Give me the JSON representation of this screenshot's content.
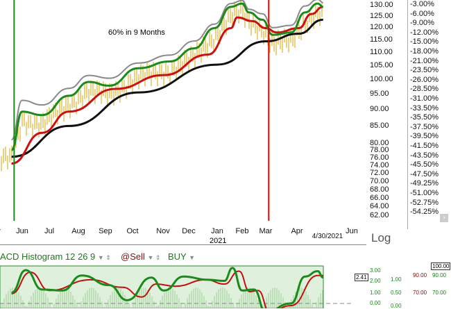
{
  "chart_data": {
    "type": "line",
    "annotation": "60% in 9 Months",
    "price_scale": "log",
    "price_ticks": [
      "130.00",
      "125.00",
      "120.00",
      "115.00",
      "110.00",
      "105.00",
      "100.00",
      "95.00",
      "90.00",
      "85.00",
      "80.00",
      "78.00",
      "76.00",
      "74.00",
      "72.00",
      "70.00",
      "68.00",
      "66.00",
      "64.00",
      "62.00"
    ],
    "percent_ticks": [
      "-3.00%",
      "-6.00%",
      "-9.00%",
      "-12.00%",
      "-15.00%",
      "-18.00%",
      "-21.00%",
      "-23.50%",
      "-26.00%",
      "-28.50%",
      "-31.00%",
      "-33.50%",
      "-35.50%",
      "-37.50%",
      "-39.50%",
      "-41.50%",
      "-43.50%",
      "-45.50%",
      "-47.50%",
      "-49.25%",
      "-51.00%",
      "-52.75%",
      "-54.25%"
    ],
    "month_labels": [
      "y",
      "Jun",
      "Jul",
      "Aug",
      "Sep",
      "Oct",
      "Nov",
      "Dec",
      "Jan",
      "Feb",
      "Mar",
      "Apr",
      "4/30/2021",
      "Jun"
    ],
    "year_label": "2021",
    "vertical_markers": [
      {
        "date": "2020-05-23",
        "color": "#1a8a1a"
      },
      {
        "date": "2021-03-04",
        "color": "#e00000"
      }
    ],
    "series": [
      {
        "color": "#111111",
        "points": [
          [
            "2020-05-20",
            76.3
          ],
          [
            "2020-07-22",
            85.0
          ],
          [
            "2020-10-07",
            95.6
          ],
          [
            "2021-01-01",
            105.4
          ],
          [
            "2021-03-01",
            114.4
          ],
          [
            "2021-04-03",
            117.5
          ],
          [
            "2021-04-30",
            123.4
          ]
        ]
      },
      {
        "color": "#cc1010",
        "points": [
          [
            "2020-05-20",
            74.5
          ],
          [
            "2020-06-23",
            83.0
          ],
          [
            "2020-07-22",
            89.4
          ],
          [
            "2020-09-12",
            96.8
          ],
          [
            "2020-11-02",
            101.6
          ],
          [
            "2020-12-22",
            109.2
          ],
          [
            "2021-01-18",
            119.8
          ],
          [
            "2021-01-26",
            124.4
          ],
          [
            "2021-02-13",
            122.8
          ],
          [
            "2021-03-01",
            119.8
          ],
          [
            "2021-03-12",
            118.0
          ],
          [
            "2021-04-03",
            119.8
          ],
          [
            "2021-04-17",
            125.9
          ],
          [
            "2021-04-30",
            129.1
          ]
        ]
      },
      {
        "color": "#8a8a8a",
        "points": [
          [
            "2020-05-20",
            81.0
          ],
          [
            "2020-06-01",
            93.0
          ],
          [
            "2020-06-23",
            91.5
          ],
          [
            "2020-07-22",
            97.0
          ],
          [
            "2020-08-13",
            101.5
          ],
          [
            "2020-09-05",
            100.5
          ],
          [
            "2020-10-07",
            106.0
          ],
          [
            "2020-11-09",
            109.0
          ],
          [
            "2020-12-07",
            114.5
          ],
          [
            "2020-12-29",
            121.5
          ],
          [
            "2021-01-18",
            130.6
          ],
          [
            "2021-02-01",
            132.0
          ],
          [
            "2021-02-09",
            128.0
          ],
          [
            "2021-02-25",
            126.0
          ],
          [
            "2021-03-08",
            120.0
          ],
          [
            "2021-03-26",
            121.0
          ],
          [
            "2021-04-10",
            129.5
          ],
          [
            "2021-04-24",
            132.5
          ],
          [
            "2021-04-30",
            131.0
          ]
        ]
      },
      {
        "color": "#1a8a1a",
        "points": [
          [
            "2020-05-20",
            78.1
          ],
          [
            "2020-06-01",
            89.4
          ],
          [
            "2020-06-23",
            88.3
          ],
          [
            "2020-07-22",
            94.5
          ],
          [
            "2020-08-13",
            99.2
          ],
          [
            "2020-09-05",
            97.9
          ],
          [
            "2020-10-07",
            104.1
          ],
          [
            "2020-11-09",
            106.6
          ],
          [
            "2020-12-07",
            111.6
          ],
          [
            "2020-12-29",
            119.8
          ],
          [
            "2021-01-18",
            129.1
          ],
          [
            "2021-02-01",
            130.6
          ],
          [
            "2021-02-09",
            126.6
          ],
          [
            "2021-02-25",
            123.4
          ],
          [
            "2021-03-08",
            117.0
          ],
          [
            "2021-03-26",
            118.0
          ],
          [
            "2021-04-10",
            126.6
          ],
          [
            "2021-04-24",
            130.6
          ],
          [
            "2021-04-30",
            129.1
          ]
        ]
      }
    ],
    "macd": {
      "title": "ACD Histogram 12 26 9",
      "sell_label": "@Sell",
      "buy_label": "BUY",
      "ticks": [
        "3.00",
        "2.00",
        "1.00",
        "0.00"
      ],
      "current": "2.41",
      "ticks2": [
        "1.00",
        "0.50",
        "0.00"
      ],
      "ticks3": [
        "90.00",
        "70.00"
      ],
      "ticks4": [
        "90.00",
        "70.00"
      ],
      "box": "100.00",
      "macd": [
        [
          "2020-05-20",
          1.0
        ],
        [
          "2020-06-05",
          3.1
        ],
        [
          "2020-06-23",
          1.3
        ],
        [
          "2020-07-15",
          1.2
        ],
        [
          "2020-08-05",
          2.6
        ],
        [
          "2020-09-05",
          1.7
        ],
        [
          "2020-09-25",
          0.3
        ],
        [
          "2020-10-20",
          2.4
        ],
        [
          "2020-11-02",
          1.2
        ],
        [
          "2020-11-25",
          2.5
        ],
        [
          "2020-12-22",
          2.2
        ],
        [
          "2021-01-10",
          2.1
        ],
        [
          "2021-01-20",
          3.3
        ],
        [
          "2021-02-01",
          1.2
        ],
        [
          "2021-02-15",
          1.3
        ],
        [
          "2021-03-01",
          -0.8
        ],
        [
          "2021-03-26",
          0.0
        ],
        [
          "2021-04-10",
          2.5
        ],
        [
          "2021-04-24",
          3.0
        ],
        [
          "2021-04-30",
          2.41
        ]
      ],
      "signal": [
        [
          "2020-05-20",
          0.9
        ],
        [
          "2020-06-10",
          2.9
        ],
        [
          "2020-07-01",
          1.2
        ],
        [
          "2020-08-15",
          2.2
        ],
        [
          "2020-09-20",
          1.5
        ],
        [
          "2020-10-10",
          0.6
        ],
        [
          "2020-10-25",
          1.8
        ],
        [
          "2020-11-15",
          1.6
        ],
        [
          "2020-12-20",
          2.2
        ],
        [
          "2021-01-10",
          1.8
        ],
        [
          "2021-01-28",
          3.0
        ],
        [
          "2021-02-10",
          1.1
        ],
        [
          "2021-02-20",
          1.2
        ],
        [
          "2021-03-05",
          -0.8
        ],
        [
          "2021-03-26",
          -0.2
        ],
        [
          "2021-04-24",
          2.6
        ],
        [
          "2021-04-30",
          2.6
        ]
      ]
    }
  },
  "footer": {
    "scale_label": "Log"
  },
  "colors": {
    "macd_bg": "#dff0dc",
    "price_bars": "#d9a400"
  }
}
